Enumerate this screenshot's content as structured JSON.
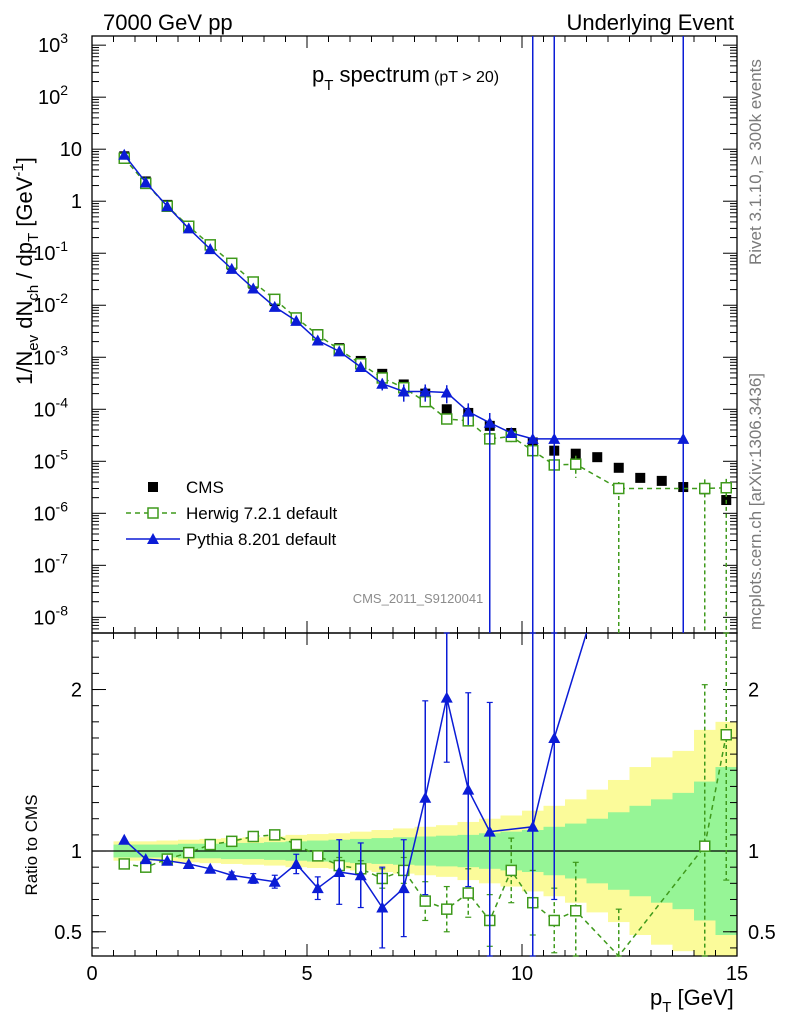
{
  "header": {
    "left": "7000 GeV pp",
    "right": "Underlying Event"
  },
  "side_labels": {
    "rivet": "Rivet 3.1.10, ≥ 300k events",
    "mcplots": "mcplots.cern.ch [arXiv:1306.3436]"
  },
  "colors": {
    "cms": "#000000",
    "herwig": "#3f9a1c",
    "pythia": "#0b1cd6",
    "band_inner": "#96f596",
    "band_outer": "#fbfb9a"
  },
  "chart_data": [
    {
      "type": "scatter",
      "panel": "main",
      "title": "p",
      "title_sub": "T",
      "title_rest": " spectrum",
      "title_note": "(pT > 20)",
      "ylabel": "1/N",
      "ylabel_parts": [
        "ev",
        " dN",
        "ch",
        " / dp",
        "T",
        " [GeV",
        "-1",
        "]"
      ],
      "watermark": "CMS_2011_S9120041",
      "yscale": "log",
      "ylim": [
        5e-09,
        1500
      ],
      "xlim": [
        0,
        15
      ],
      "y_ticks": [
        {
          "v": 1e-08,
          "base": "10",
          "exp": "-8"
        },
        {
          "v": 1e-07,
          "base": "10",
          "exp": "-7"
        },
        {
          "v": 1e-06,
          "base": "10",
          "exp": "-6"
        },
        {
          "v": 1e-05,
          "base": "10",
          "exp": "-5"
        },
        {
          "v": 0.0001,
          "base": "10",
          "exp": "-4"
        },
        {
          "v": 0.001,
          "base": "10",
          "exp": "-3"
        },
        {
          "v": 0.01,
          "base": "10",
          "exp": "-2"
        },
        {
          "v": 0.1,
          "base": "10",
          "exp": "-1"
        },
        {
          "v": 1,
          "base": "1",
          "exp": ""
        },
        {
          "v": 10,
          "base": "10",
          "exp": ""
        },
        {
          "v": 100,
          "base": "10",
          "exp": "2"
        },
        {
          "v": 1000,
          "base": "10",
          "exp": "3"
        }
      ],
      "legend": [
        {
          "key": "cms",
          "label": "CMS"
        },
        {
          "key": "herwig",
          "label": "Herwig 7.2.1 default"
        },
        {
          "key": "pythia",
          "label": "Pythia 8.201 default"
        }
      ],
      "series": [
        {
          "name": "CMS",
          "key": "cms",
          "marker": "square-filled",
          "x": [
            0.75,
            1.25,
            1.75,
            2.25,
            2.75,
            3.25,
            3.75,
            4.25,
            4.75,
            5.25,
            5.75,
            6.25,
            6.75,
            7.25,
            7.75,
            8.25,
            8.75,
            9.25,
            9.75,
            10.25,
            10.75,
            11.25,
            11.75,
            12.25,
            12.75,
            13.25,
            13.75,
            14.25,
            14.75
          ],
          "y": [
            7.3,
            2.4,
            0.85,
            0.33,
            0.14,
            0.06,
            0.026,
            0.012,
            0.0055,
            0.0028,
            0.0015,
            0.00085,
            0.00048,
            0.0003,
            0.0002,
            0.0001,
            8.5e-05,
            4.8e-05,
            3.5e-05,
            2.3e-05,
            1.6e-05,
            1.4e-05,
            1.2e-05,
            7.5e-06,
            4.8e-06,
            4.2e-06,
            3.2e-06,
            2.9e-06,
            1.8e-06
          ]
        },
        {
          "name": "Herwig 7.2.1 default",
          "key": "herwig",
          "marker": "square-open",
          "line": "dashed",
          "x": [
            0.75,
            1.25,
            1.75,
            2.25,
            2.75,
            3.25,
            3.75,
            4.25,
            4.75,
            5.25,
            5.75,
            6.25,
            6.75,
            7.25,
            7.75,
            8.25,
            8.75,
            9.25,
            9.75,
            10.25,
            10.75,
            11.25,
            12.25,
            14.25,
            14.75
          ],
          "y": [
            6.7,
            2.2,
            0.8,
            0.33,
            0.145,
            0.064,
            0.028,
            0.013,
            0.0057,
            0.0027,
            0.0014,
            0.00075,
            0.0004,
            0.00026,
            0.00014,
            6.5e-05,
            6e-05,
            2.7e-05,
            3e-05,
            1.6e-05,
            8.5e-06,
            8.8e-06,
            3e-06,
            3e-06,
            3.1e-06
          ],
          "y_err": [
            0,
            0,
            0,
            0,
            0,
            0,
            0,
            0,
            0,
            0,
            0,
            0,
            0,
            0,
            0,
            1.2e-05,
            1.2e-05,
            1e-05,
            8e-06,
            6e-06,
            4e-06,
            4e-06,
            1e-06,
            1.5e-06,
            1.5e-06
          ],
          "y_to_bottom": [
            false,
            false,
            false,
            false,
            false,
            false,
            false,
            false,
            false,
            false,
            false,
            false,
            false,
            false,
            false,
            false,
            false,
            false,
            false,
            false,
            false,
            false,
            true,
            true,
            true
          ]
        },
        {
          "name": "Pythia 8.201 default",
          "key": "pythia",
          "marker": "triangle",
          "line": "solid",
          "x": [
            0.75,
            1.25,
            1.75,
            2.25,
            2.75,
            3.25,
            3.75,
            4.25,
            4.75,
            5.25,
            5.75,
            6.25,
            6.75,
            7.25,
            7.75,
            8.25,
            8.75,
            9.25,
            9.75,
            10.25,
            10.75,
            13.75
          ],
          "y": [
            7.8,
            2.3,
            0.8,
            0.3,
            0.12,
            0.05,
            0.021,
            0.0093,
            0.005,
            0.0021,
            0.0013,
            0.00065,
            0.00031,
            0.00022,
            0.00022,
            0.00021,
            9e-05,
            5.5e-05,
            3.5e-05,
            2.7e-05,
            2.7e-05,
            2.7e-05
          ],
          "y_err": [
            0,
            0,
            0,
            0,
            0,
            0,
            0,
            0,
            0,
            0,
            0,
            0,
            8e-05,
            8e-05,
            8e-05,
            8e-05,
            4e-05,
            3e-05,
            0,
            0,
            0,
            0
          ],
          "y_to_bottom": [
            false,
            false,
            false,
            false,
            false,
            false,
            false,
            false,
            false,
            false,
            false,
            false,
            false,
            false,
            false,
            false,
            false,
            true,
            false,
            true,
            true,
            true
          ],
          "y_to_top": [
            false,
            false,
            false,
            false,
            false,
            false,
            false,
            false,
            false,
            false,
            false,
            false,
            false,
            false,
            false,
            false,
            false,
            false,
            false,
            true,
            true,
            true
          ]
        }
      ]
    },
    {
      "type": "line",
      "panel": "ratio",
      "ylabel": "Ratio to CMS",
      "xlabel": "p",
      "xlabel_sub": "T",
      "xlabel_rest": " [GeV]",
      "xlim": [
        0,
        15
      ],
      "ylim": [
        0.35,
        2.35
      ],
      "x_ticks": [
        0,
        5,
        10,
        15
      ],
      "y_ticks": [
        0.5,
        1,
        2
      ],
      "band_edges": [
        0.5,
        1.0,
        1.5,
        2.0,
        2.5,
        3.0,
        3.5,
        4.0,
        4.5,
        5.0,
        5.5,
        6.0,
        6.5,
        7.0,
        7.5,
        8.0,
        8.5,
        9.0,
        9.5,
        10.0,
        10.5,
        11.0,
        11.5,
        12.0,
        12.5,
        13.0,
        13.5,
        14.0,
        14.5,
        15.0
      ],
      "band_inner": [
        0.04,
        0.04,
        0.04,
        0.045,
        0.045,
        0.05,
        0.05,
        0.055,
        0.06,
        0.065,
        0.07,
        0.075,
        0.08,
        0.085,
        0.09,
        0.095,
        0.1,
        0.11,
        0.12,
        0.13,
        0.15,
        0.17,
        0.2,
        0.24,
        0.28,
        0.32,
        0.36,
        0.43,
        0.52
      ],
      "band_outer": [
        0.06,
        0.06,
        0.065,
        0.07,
        0.075,
        0.08,
        0.085,
        0.09,
        0.1,
        0.105,
        0.11,
        0.12,
        0.13,
        0.14,
        0.15,
        0.16,
        0.18,
        0.2,
        0.22,
        0.25,
        0.28,
        0.32,
        0.38,
        0.44,
        0.52,
        0.58,
        0.62,
        0.75,
        0.8
      ],
      "series": [
        {
          "name": "Herwig 7.2.1 default",
          "key": "herwig",
          "marker": "square-open",
          "line": "dashed",
          "x": [
            0.75,
            1.25,
            1.75,
            2.25,
            2.75,
            3.25,
            3.75,
            4.25,
            4.75,
            5.25,
            5.75,
            6.25,
            6.75,
            7.25,
            7.75,
            8.25,
            8.75,
            9.25,
            9.75,
            10.25,
            10.75,
            11.25,
            12.25,
            14.25,
            14.75
          ],
          "y": [
            0.92,
            0.9,
            0.95,
            0.99,
            1.04,
            1.06,
            1.09,
            1.1,
            1.04,
            0.97,
            0.91,
            0.89,
            0.83,
            0.88,
            0.69,
            0.64,
            0.74,
            0.57,
            0.88,
            0.68,
            0.57,
            0.63,
            0.34,
            1.03,
            1.72
          ],
          "err_lo": [
            0,
            0,
            0,
            0,
            0,
            0,
            0,
            0,
            0,
            0,
            0.05,
            0.05,
            0.06,
            0.08,
            0.12,
            0.14,
            0.15,
            0.16,
            0.2,
            0.2,
            0.2,
            0.3,
            0.3,
            0.7,
            0.9
          ],
          "err_hi": [
            0,
            0,
            0,
            0,
            0,
            0,
            0,
            0,
            0,
            0,
            0.05,
            0.05,
            0.06,
            0.08,
            0.12,
            0.14,
            0.15,
            0.16,
            0.2,
            0.2,
            0.2,
            0.3,
            0.3,
            1.0,
            0.9
          ]
        },
        {
          "name": "Pythia 8.201 default",
          "key": "pythia",
          "marker": "triangle",
          "line": "solid",
          "x": [
            0.75,
            1.25,
            1.75,
            2.25,
            2.75,
            3.25,
            3.75,
            4.25,
            4.75,
            5.25,
            5.75,
            6.25,
            6.75,
            7.25,
            7.75,
            8.25,
            8.75,
            9.25,
            10.25,
            10.75,
            11.5
          ],
          "y": [
            1.07,
            0.95,
            0.94,
            0.92,
            0.89,
            0.85,
            0.83,
            0.81,
            0.92,
            0.77,
            0.87,
            0.85,
            0.65,
            0.77,
            1.33,
            1.95,
            1.38,
            1.12,
            1.15,
            1.7,
            2.4
          ],
          "err_lo": [
            0,
            0,
            0,
            0,
            0,
            0.02,
            0.03,
            0.04,
            0.06,
            0.07,
            0.2,
            0.2,
            0.25,
            0.3,
            0.6,
            0.4,
            0.6,
            1.0,
            1.0,
            1.0,
            0
          ],
          "err_hi": [
            0,
            0,
            0,
            0,
            0,
            0.02,
            0.03,
            0.04,
            0.06,
            0.07,
            0.2,
            0.2,
            0.25,
            0.3,
            0.6,
            0.5,
            0.6,
            0.8,
            1.3,
            1.5,
            0
          ]
        }
      ]
    }
  ]
}
